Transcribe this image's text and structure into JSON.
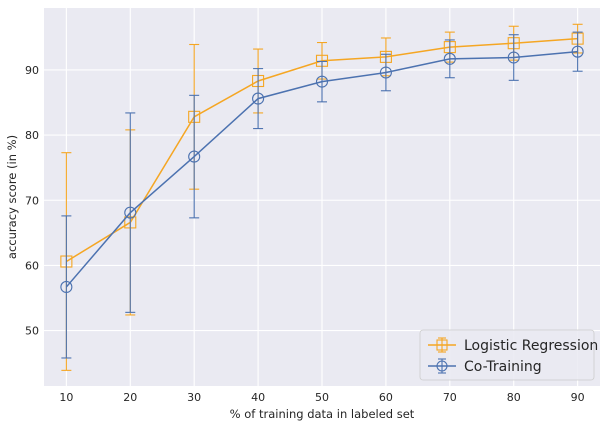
{
  "chart_data": {
    "type": "line",
    "title": "",
    "xlabel": "% of training data in labeled set",
    "ylabel": "accuracy score (in %)",
    "x": [
      10,
      20,
      30,
      40,
      50,
      60,
      70,
      80,
      90
    ],
    "xticks": [
      "10",
      "20",
      "30",
      "40",
      "50",
      "60",
      "70",
      "80",
      "90"
    ],
    "yticks": [
      "50",
      "60",
      "70",
      "80",
      "90"
    ],
    "xlim": [
      6.5,
      93.5
    ],
    "ylim": [
      41.5,
      99.5
    ],
    "grid": true,
    "legend_position": "lower-right",
    "series": [
      {
        "name": "Logistic Regression",
        "color": "#f5a623",
        "marker": "square",
        "values": [
          60.6,
          66.6,
          82.8,
          88.3,
          91.4,
          92.0,
          93.5,
          94.1,
          94.8
        ],
        "errors": [
          16.7,
          14.2,
          11.1,
          4.9,
          2.8,
          2.9,
          2.3,
          2.6,
          2.2
        ]
      },
      {
        "name": "Co-Training",
        "color": "#4c72b0",
        "marker": "circle",
        "values": [
          56.7,
          68.1,
          76.7,
          85.6,
          88.2,
          89.6,
          91.7,
          91.9,
          92.8
        ],
        "errors": [
          10.9,
          15.3,
          9.4,
          4.6,
          3.1,
          2.8,
          2.9,
          3.5,
          3.0
        ]
      }
    ]
  }
}
